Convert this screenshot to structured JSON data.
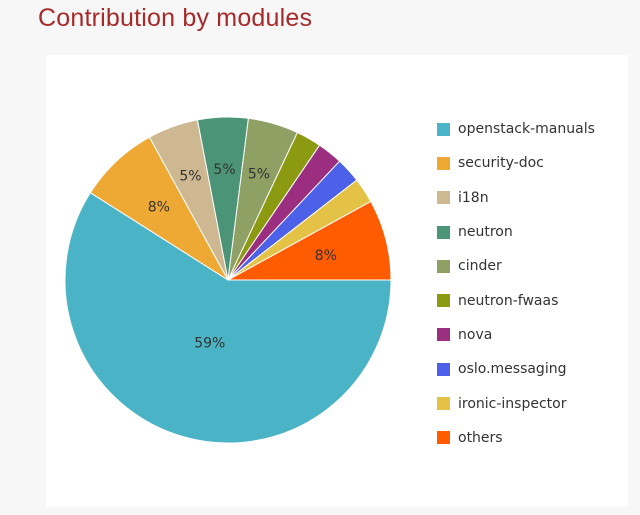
{
  "title": "Contribution by modules",
  "chart_data": {
    "type": "pie",
    "slices": [
      {
        "name": "openstack-manuals",
        "value": 59,
        "label": "59%",
        "color": "#4ab3c5"
      },
      {
        "name": "security-doc",
        "value": 8,
        "label": "8%",
        "color": "#eea935"
      },
      {
        "name": "i18n",
        "value": 5,
        "label": "5%",
        "color": "#cdb891"
      },
      {
        "name": "neutron",
        "value": 5,
        "label": "5%",
        "color": "#4b9478"
      },
      {
        "name": "cinder",
        "value": 5,
        "label": "5%",
        "color": "#8fa065"
      },
      {
        "name": "neutron-fwaas",
        "value": 2.5,
        "label": "",
        "color": "#8c9a12"
      },
      {
        "name": "nova",
        "value": 2.5,
        "label": "",
        "color": "#9b2e7e"
      },
      {
        "name": "oslo.messaging",
        "value": 2.5,
        "label": "",
        "color": "#4d60e8"
      },
      {
        "name": "ironic-inspector",
        "value": 2.5,
        "label": "",
        "color": "#e3c245"
      },
      {
        "name": "others",
        "value": 8,
        "label": "8%",
        "color": "#ff5b00"
      }
    ],
    "legend_position": "right"
  }
}
